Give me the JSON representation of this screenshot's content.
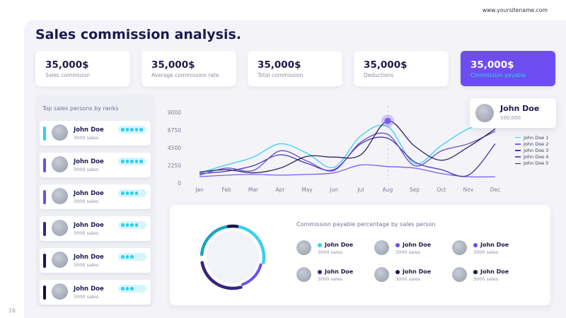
{
  "site": "www.yoursitename.com",
  "page_number": "16",
  "title": "Sales commission analysis.",
  "kpis": [
    {
      "value": "35,000$",
      "label": "Sales commision"
    },
    {
      "value": "35,000$",
      "label": "Average commission rate"
    },
    {
      "value": "35,000$",
      "label": "Total commission"
    },
    {
      "value": "35,000$",
      "label": "Deductions"
    },
    {
      "value": "35,000$",
      "label": "Commission payable"
    }
  ],
  "ranks": {
    "title": "Top sales persons by ranks",
    "items": [
      {
        "name": "John Doe",
        "sales": "3000 sales",
        "bar_color": "#2fd0ec",
        "dots": 5
      },
      {
        "name": "John Doe",
        "sales": "3000 sales",
        "bar_color": "#6d4df0",
        "dots": 5
      },
      {
        "name": "John Doe",
        "sales": "3000 sales",
        "bar_color": "#6d4df0",
        "dots": 4
      },
      {
        "name": "John Doe",
        "sales": "3000 sales",
        "bar_color": "#3a237e",
        "dots": 4
      },
      {
        "name": "John Doe",
        "sales": "3000 sales",
        "bar_color": "#1d1650",
        "dots": 3
      },
      {
        "name": "John Doe",
        "sales": "3000 sales",
        "bar_color": "#140f3a",
        "dots": 3
      }
    ]
  },
  "callout": {
    "name": "John Doe",
    "value": "100,000"
  },
  "chart_data": {
    "type": "line",
    "categories": [
      "Jan",
      "Feb",
      "Mar",
      "Apr",
      "May",
      "Jun",
      "Jul",
      "Aug",
      "Sep",
      "Oct",
      "Nov",
      "Dec"
    ],
    "ylim": [
      0,
      9000
    ],
    "yticks": [
      "9000",
      "6750",
      "4500",
      "2250",
      "0"
    ],
    "legend_position": "right",
    "series": [
      {
        "name": "John Doe 1",
        "color": "#36d2ec",
        "values": [
          1300,
          2300,
          3300,
          5000,
          3800,
          2000,
          6000,
          7200,
          2500,
          4800,
          6900,
          7800
        ]
      },
      {
        "name": "John Doe 2",
        "color": "#7b5cf2",
        "values": [
          800,
          1000,
          1100,
          1000,
          1100,
          1300,
          2300,
          2100,
          1900,
          1200,
          800,
          800
        ]
      },
      {
        "name": "John Doe 3",
        "color": "#4a33b0",
        "values": [
          1200,
          1500,
          2200,
          3600,
          2500,
          1700,
          5000,
          5700,
          2700,
          1700,
          1000,
          5000
        ]
      },
      {
        "name": "John Doe 4",
        "color": "#6a4bc8",
        "values": [
          1000,
          1900,
          1600,
          4100,
          2800,
          1600,
          5200,
          6200,
          2200,
          4100,
          5000,
          6600
        ]
      },
      {
        "name": "John Doe 5",
        "color": "#2a2260",
        "values": [
          1400,
          1700,
          1300,
          1900,
          3400,
          3300,
          3600,
          7900,
          4700,
          2900,
          4600,
          6900
        ]
      }
    ],
    "highlight": {
      "category": "Aug"
    }
  },
  "bottom": {
    "title": "Commission payable percentage by sales person",
    "donut_colors": [
      "#36d2ec",
      "#1fa3c5",
      "#6d4df0",
      "#3a237e",
      "#1d1650"
    ],
    "persons": [
      {
        "name": "John Doe",
        "sales": "3000 sales",
        "color": "#36d2ec"
      },
      {
        "name": "John Doe",
        "sales": "3000 sales",
        "color": "#6d4df0"
      },
      {
        "name": "John Doe",
        "sales": "3000 sales",
        "color": "#6d4df0"
      },
      {
        "name": "John Doe",
        "sales": "3000 sales",
        "color": "#3a237e"
      },
      {
        "name": "John Doe",
        "sales": "3000 sales",
        "color": "#1d1650"
      },
      {
        "name": "John Doe",
        "sales": "3000 sales",
        "color": "#140f3a"
      }
    ]
  }
}
